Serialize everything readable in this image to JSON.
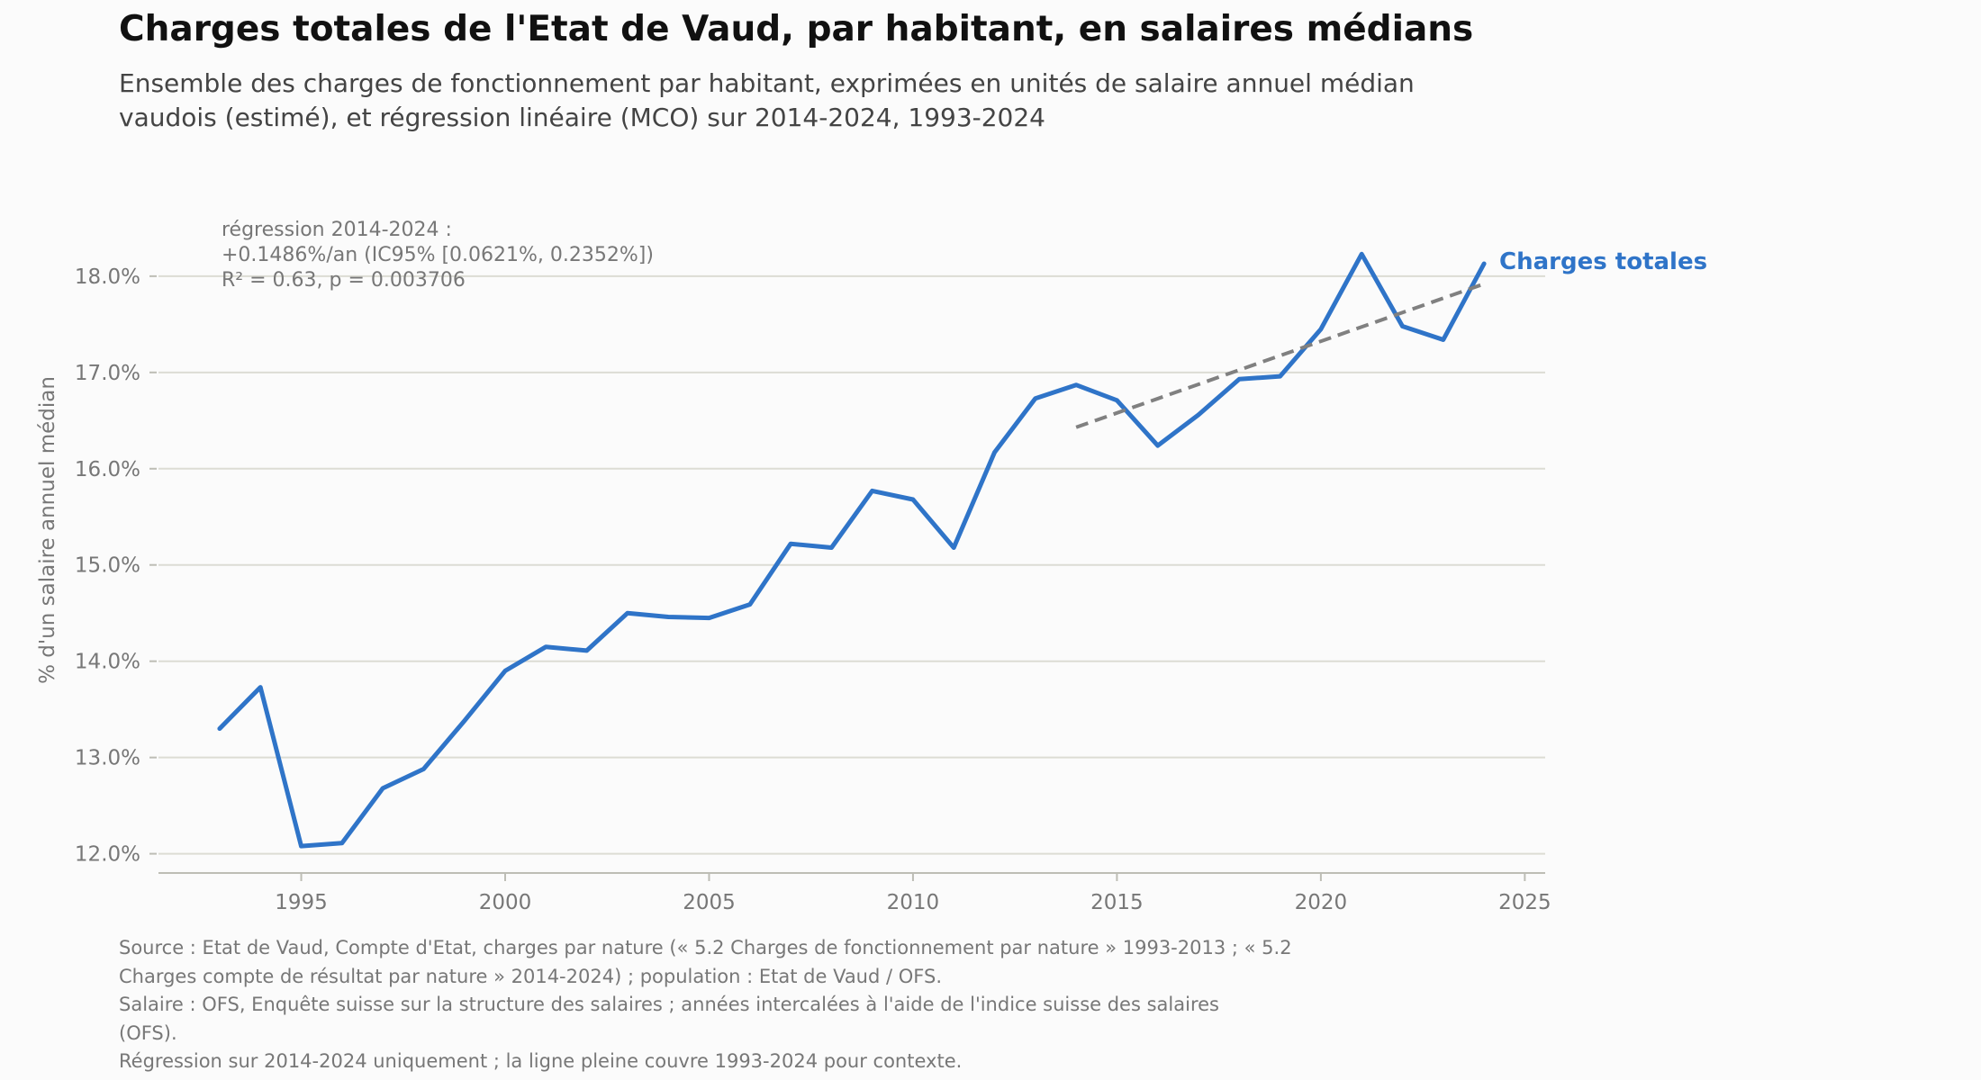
{
  "title": "Charges totales de l'Etat de Vaud, par habitant, en salaires médians",
  "subtitle_lines": [
    "Ensemble des charges de fonctionnement par habitant, exprimées en unités de salaire annuel médian",
    "vaudois (estimé), et régression linéaire (MCO) sur 2014-2024, 1993-2024"
  ],
  "annotation_lines": [
    "régression 2014-2024 :",
    "+0.1486%/an (IC95% [0.0621%, 0.2352%])",
    "R² = 0.63, p = 0.003706"
  ],
  "source_lines": [
    "Source : Etat de Vaud, Compte d'Etat, charges par nature (« 5.2 Charges de fonctionnement par nature » 1993-2013 ; « 5.2",
    "Charges compte de résultat par nature » 2014-2024) ; population : Etat de Vaud / OFS.",
    "Salaire : OFS, Enquête suisse sur la structure des salaires ; années intercalées à l'aide de l'indice suisse des salaires",
    "(OFS).",
    "Régression sur 2014-2024 uniquement ; la ligne pleine couvre 1993-2024 pour contexte."
  ],
  "colors": {
    "series": "#2f74c8",
    "regression": "#808080",
    "grid": "#dcdcd4",
    "axis": "#bdbdb5",
    "tick_text": "#777777"
  },
  "chart_data": {
    "type": "line",
    "ylabel": "% d'un salaire annuel médian",
    "xlim": [
      1991.5,
      2025.5
    ],
    "ylim": [
      11.8,
      18.7
    ],
    "x_ticks": [
      1995,
      2000,
      2005,
      2010,
      2015,
      2020,
      2025
    ],
    "y_ticks": [
      12,
      13,
      14,
      15,
      16,
      17,
      18
    ],
    "y_tick_labels": [
      "12.0%",
      "13.0%",
      "14.0%",
      "15.0%",
      "16.0%",
      "17.0%",
      "18.0%"
    ],
    "x_tick_labels": [
      "1995",
      "2000",
      "2005",
      "2010",
      "2015",
      "2020",
      "2025"
    ],
    "grid": "horizontal",
    "series": [
      {
        "name": "Charges totales",
        "x": [
          1993,
          1994,
          1995,
          1996,
          1997,
          1998,
          1999,
          2000,
          2001,
          2002,
          2003,
          2004,
          2005,
          2006,
          2007,
          2008,
          2009,
          2010,
          2011,
          2012,
          2013,
          2014,
          2015,
          2016,
          2017,
          2018,
          2019,
          2020,
          2021,
          2022,
          2023,
          2024
        ],
        "values": [
          13.3,
          13.73,
          12.08,
          12.11,
          12.68,
          12.88,
          13.38,
          13.9,
          14.15,
          14.11,
          14.5,
          14.46,
          14.45,
          14.59,
          15.22,
          15.18,
          15.77,
          15.68,
          15.18,
          16.17,
          16.73,
          16.87,
          16.71,
          16.24,
          16.56,
          16.93,
          16.96,
          17.45,
          18.23,
          17.48,
          17.34,
          18.13
        ]
      },
      {
        "name": "régression 2014-2024",
        "style": "dashed",
        "x": [
          2014,
          2024
        ],
        "values": [
          16.43,
          17.92
        ]
      }
    ]
  }
}
